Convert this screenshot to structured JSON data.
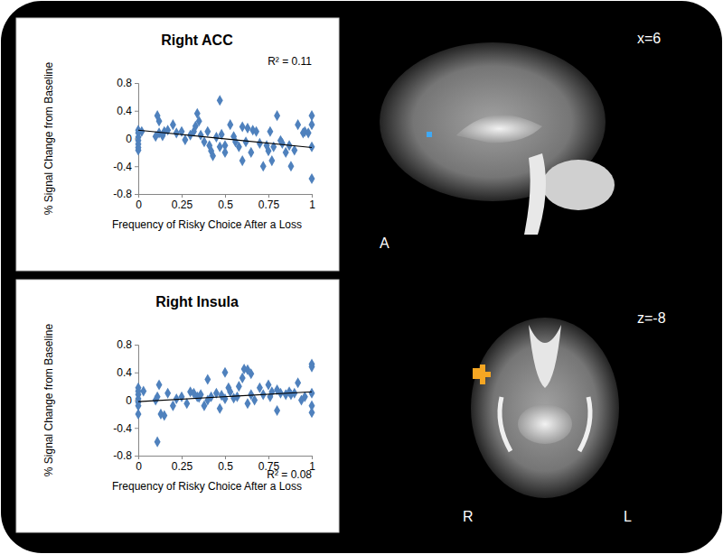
{
  "chart_data": [
    {
      "type": "scatter",
      "title": "Right ACC",
      "xlabel": "Frequency of Risky Choice After a Loss",
      "ylabel": "% Signal Change from Baseline",
      "annotation": "R² = 0.11",
      "xlim": [
        0,
        1
      ],
      "ylim": [
        -0.8,
        0.8
      ],
      "xticks": [
        0,
        0.25,
        0.5,
        0.75,
        1
      ],
      "yticks": [
        -0.8,
        -0.4,
        0,
        0.4,
        0.8
      ],
      "grid": false,
      "series": [
        {
          "type": "scatter",
          "color": "#4f81bd",
          "marker": "diamond",
          "x": [
            0,
            0,
            0,
            0,
            0,
            0,
            0,
            0.02,
            0.1,
            0.11,
            0.12,
            0.12,
            0.14,
            0.15,
            0.17,
            0.2,
            0.22,
            0.25,
            0.27,
            0.3,
            0.32,
            0.33,
            0.34,
            0.35,
            0.36,
            0.38,
            0.4,
            0.41,
            0.42,
            0.43,
            0.45,
            0.47,
            0.47,
            0.48,
            0.5,
            0.5,
            0.53,
            0.55,
            0.56,
            0.58,
            0.6,
            0.6,
            0.62,
            0.63,
            0.65,
            0.66,
            0.68,
            0.7,
            0.72,
            0.74,
            0.75,
            0.76,
            0.77,
            0.78,
            0.8,
            0.82,
            0.83,
            0.85,
            0.87,
            0.88,
            0.9,
            0.92,
            0.95,
            0.96,
            0.98,
            1,
            1,
            1,
            1
          ],
          "values": [
            0.12,
            0.08,
            0.02,
            -0.03,
            -0.08,
            -0.13,
            -0.17,
            0.1,
            0.03,
            0.33,
            0.25,
            0.08,
            0.04,
            0.1,
            0.12,
            0.2,
            0.08,
            0.1,
            -0.02,
            0.05,
            0.1,
            0.18,
            0.36,
            0.25,
            0.05,
            -0.05,
            0.1,
            -0.1,
            -0.18,
            -0.25,
            0.02,
            0.55,
            -0.12,
            0.06,
            -0.1,
            -0.2,
            0.2,
            0.03,
            -0.05,
            -0.12,
            0.17,
            -0.32,
            -0.05,
            0.15,
            -0.2,
            0.12,
            0.1,
            -0.07,
            -0.4,
            -0.1,
            -0.18,
            0.1,
            -0.32,
            -0.12,
            0.33,
            -0.03,
            -0.07,
            -0.2,
            -0.1,
            -0.4,
            -0.17,
            0.2,
            0.08,
            0.1,
            0.08,
            0.33,
            0.2,
            -0.12,
            -0.58
          ]
        },
        {
          "type": "line",
          "color": "#000000",
          "line_style": "solid",
          "x": [
            0,
            1
          ],
          "values": [
            0.12,
            -0.13
          ]
        }
      ]
    },
    {
      "type": "scatter",
      "title": "Right Insula",
      "xlabel": "Frequency of Risky Choice After a Loss",
      "ylabel": "% Signal Change from Baseline",
      "annotation": "R² = 0.08",
      "xlim": [
        0,
        1
      ],
      "ylim": [
        -0.8,
        0.8
      ],
      "xticks": [
        0,
        0.25,
        0.5,
        0.75,
        1
      ],
      "yticks": [
        -0.8,
        -0.4,
        0,
        0.4,
        0.8
      ],
      "grid": false,
      "series": [
        {
          "type": "scatter",
          "color": "#4f81bd",
          "marker": "diamond",
          "x": [
            0,
            0,
            0,
            0,
            0,
            0,
            0,
            0.03,
            0.1,
            0.11,
            0.11,
            0.12,
            0.13,
            0.15,
            0.17,
            0.2,
            0.22,
            0.25,
            0.28,
            0.3,
            0.32,
            0.34,
            0.35,
            0.36,
            0.38,
            0.4,
            0.4,
            0.42,
            0.45,
            0.47,
            0.48,
            0.5,
            0.5,
            0.52,
            0.53,
            0.55,
            0.57,
            0.58,
            0.6,
            0.61,
            0.63,
            0.63,
            0.65,
            0.65,
            0.67,
            0.7,
            0.72,
            0.75,
            0.76,
            0.77,
            0.8,
            0.8,
            0.82,
            0.85,
            0.87,
            0.88,
            0.9,
            0.92,
            0.94,
            0.96,
            1,
            1,
            1,
            1,
            1
          ],
          "values": [
            0.18,
            0.13,
            0.08,
            0.02,
            -0.03,
            -0.08,
            -0.2,
            0.13,
            0.0,
            0.05,
            -0.6,
            0.22,
            -0.2,
            -0.22,
            0.1,
            -0.08,
            0.02,
            0.05,
            -0.05,
            0.12,
            0.1,
            0.05,
            0.04,
            0.08,
            -0.08,
            0.3,
            0.0,
            0.05,
            0.1,
            -0.12,
            0.07,
            0.4,
            0.02,
            0.18,
            0.12,
            0.03,
            0.05,
            0.2,
            0.32,
            0.45,
            0.44,
            -0.05,
            0.38,
            0.08,
            0.0,
            0.18,
            0.08,
            0.22,
            0.05,
            0.12,
            0.15,
            -0.15,
            0.1,
            0.08,
            0.12,
            0.08,
            0.1,
            0.25,
            0.0,
            0.05,
            0.52,
            0.48,
            0.1,
            -0.08,
            -0.18
          ]
        },
        {
          "type": "line",
          "color": "#000000",
          "line_style": "solid",
          "x": [
            0,
            1
          ],
          "values": [
            -0.02,
            0.12
          ]
        }
      ]
    }
  ],
  "images": [
    {
      "coordinate": "x=6",
      "direction": "A"
    },
    {
      "coordinate": "z=-8",
      "right_side": "R",
      "left_side": "L"
    }
  ]
}
